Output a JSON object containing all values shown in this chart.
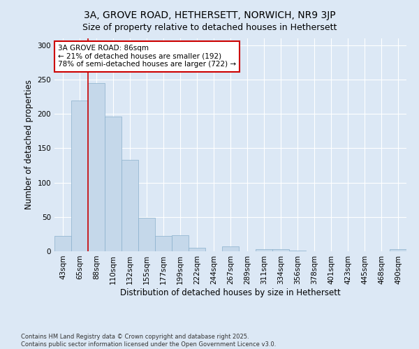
{
  "title_line1": "3A, GROVE ROAD, HETHERSETT, NORWICH, NR9 3JP",
  "title_line2": "Size of property relative to detached houses in Hethersett",
  "xlabel": "Distribution of detached houses by size in Hethersett",
  "ylabel": "Number of detached properties",
  "categories": [
    "43sqm",
    "65sqm",
    "88sqm",
    "110sqm",
    "132sqm",
    "155sqm",
    "177sqm",
    "199sqm",
    "222sqm",
    "244sqm",
    "267sqm",
    "289sqm",
    "311sqm",
    "334sqm",
    "356sqm",
    "378sqm",
    "401sqm",
    "423sqm",
    "445sqm",
    "468sqm",
    "490sqm"
  ],
  "values": [
    22,
    220,
    245,
    196,
    133,
    49,
    22,
    23,
    5,
    0,
    7,
    0,
    3,
    3,
    1,
    0,
    0,
    0,
    0,
    0,
    3
  ],
  "bar_color": "#c5d8ea",
  "bar_edge_color": "#8ab0cc",
  "ref_line_color": "#cc0000",
  "annotation_text": "3A GROVE ROAD: 86sqm\n← 21% of detached houses are smaller (192)\n78% of semi-detached houses are larger (722) →",
  "annotation_box_color": "#ffffff",
  "annotation_box_edge_color": "#cc0000",
  "footnote_line1": "Contains HM Land Registry data © Crown copyright and database right 2025.",
  "footnote_line2": "Contains public sector information licensed under the Open Government Licence v3.0.",
  "ylim": [
    0,
    310
  ],
  "yticks": [
    0,
    50,
    100,
    150,
    200,
    250,
    300
  ],
  "bg_color": "#dce8f5",
  "plot_bg_color": "#dce8f5",
  "title_fontsize": 10,
  "subtitle_fontsize": 9,
  "axis_label_fontsize": 8.5,
  "tick_fontsize": 7.5,
  "footnote_fontsize": 6,
  "annotation_fontsize": 7.5
}
